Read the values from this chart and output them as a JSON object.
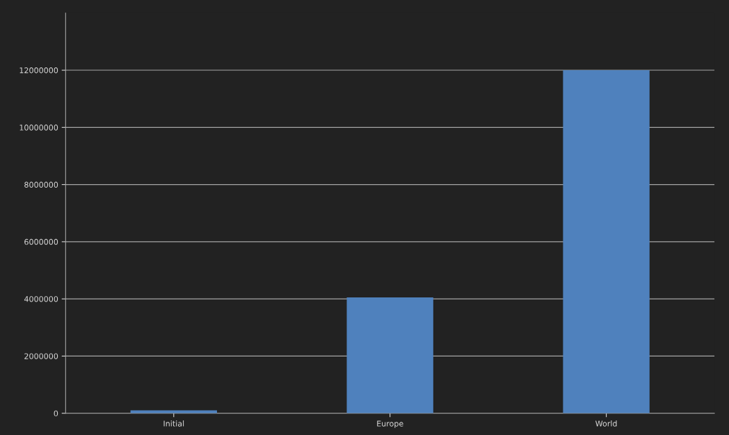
{
  "chart_data": {
    "type": "bar",
    "categories": [
      "Initial",
      "Europe",
      "World"
    ],
    "values": [
      100000,
      4050000,
      12000000
    ],
    "color": "#4f81bd",
    "ylim": [
      0,
      14000000
    ],
    "yticks": [
      0,
      2000000,
      4000000,
      6000000,
      8000000,
      10000000,
      12000000
    ],
    "grid": "y"
  }
}
